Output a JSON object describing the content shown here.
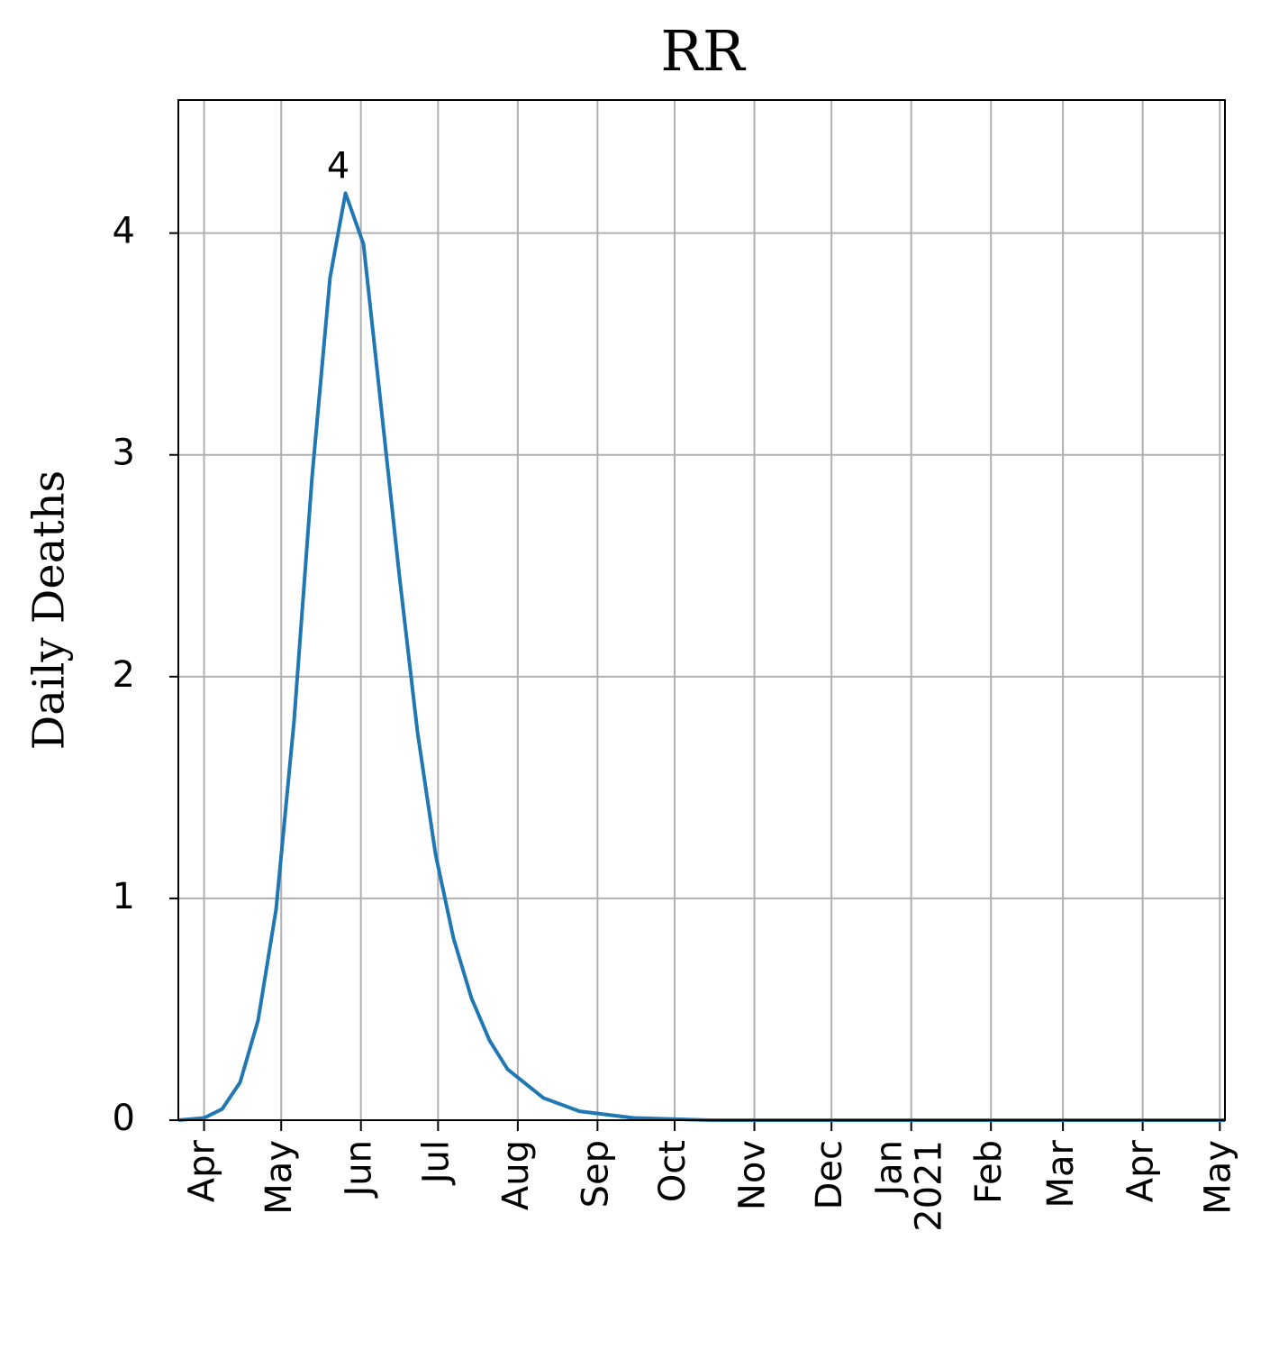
{
  "chart_data": {
    "type": "line",
    "title": "RR",
    "ylabel": "Daily Deaths",
    "x": [
      "2020-03-22",
      "2020-04-01",
      "2020-04-08",
      "2020-04-15",
      "2020-04-22",
      "2020-04-29",
      "2020-05-06",
      "2020-05-13",
      "2020-05-20",
      "2020-05-26",
      "2020-06-02",
      "2020-06-09",
      "2020-06-16",
      "2020-06-23",
      "2020-06-30",
      "2020-07-07",
      "2020-07-14",
      "2020-07-21",
      "2020-07-28",
      "2020-08-11",
      "2020-08-25",
      "2020-09-15",
      "2020-10-15",
      "2021-01-01",
      "2021-05-03"
    ],
    "series": [
      {
        "name": "RR",
        "color": "#1f77b4",
        "values": [
          0.0,
          0.01,
          0.05,
          0.17,
          0.45,
          0.95,
          1.8,
          2.9,
          3.8,
          4.18,
          3.95,
          3.2,
          2.45,
          1.75,
          1.2,
          0.82,
          0.55,
          0.36,
          0.23,
          0.1,
          0.04,
          0.01,
          0.0,
          0.0,
          0.0
        ]
      }
    ],
    "annotations": [
      {
        "x": "2020-05-26",
        "y": 4.18,
        "label": "4"
      }
    ],
    "xlim": [
      "2020-03-22",
      "2021-05-03"
    ],
    "xticks": [
      {
        "value": "2020-04-01",
        "label": "Apr"
      },
      {
        "value": "2020-05-01",
        "label": "May"
      },
      {
        "value": "2020-06-01",
        "label": "Jun"
      },
      {
        "value": "2020-07-01",
        "label": "Jul"
      },
      {
        "value": "2020-08-01",
        "label": "Aug"
      },
      {
        "value": "2020-09-01",
        "label": "Sep"
      },
      {
        "value": "2020-10-01",
        "label": "Oct"
      },
      {
        "value": "2020-11-01",
        "label": "Nov"
      },
      {
        "value": "2020-12-01",
        "label": "Dec"
      },
      {
        "value": "2021-01-01",
        "label": "Jan\n2021"
      },
      {
        "value": "2021-02-01",
        "label": "Feb"
      },
      {
        "value": "2021-03-01",
        "label": "Mar"
      },
      {
        "value": "2021-04-01",
        "label": "Apr"
      },
      {
        "value": "2021-05-01",
        "label": "May"
      }
    ],
    "ylim": [
      0,
      4.6
    ],
    "yticks": [
      0,
      1,
      2,
      3,
      4
    ],
    "grid": true
  }
}
